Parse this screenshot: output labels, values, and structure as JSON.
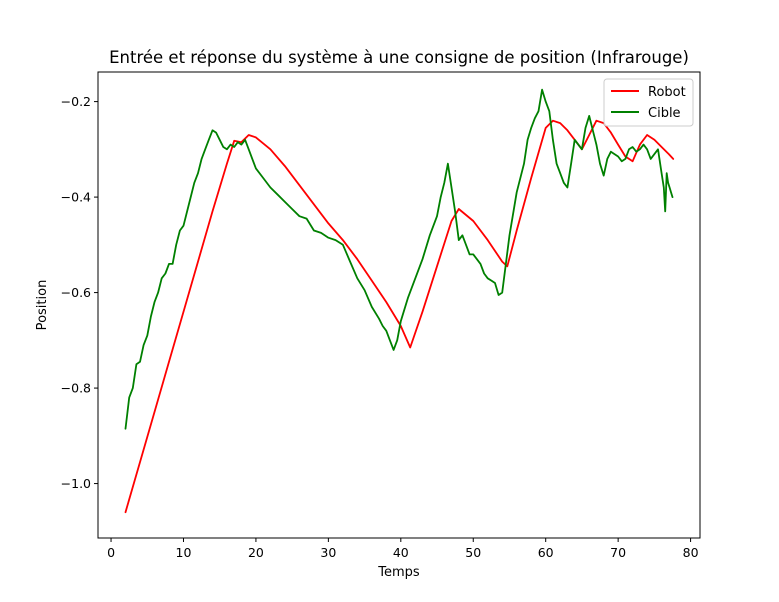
{
  "chart_data": {
    "type": "line",
    "title": "Entrée et réponse du système à une consigne de position (Infrarouge)",
    "xlabel": "Temps",
    "ylabel": "Position",
    "xlim": [
      -1.8,
      81.3
    ],
    "ylim": [
      -1.114,
      -0.138
    ],
    "xticks": [
      0,
      10,
      20,
      30,
      40,
      50,
      60,
      70,
      80
    ],
    "yticks": [
      -1.0,
      -0.8,
      -0.6,
      -0.4,
      -0.2
    ],
    "xtick_labels": [
      "0",
      "10",
      "20",
      "30",
      "40",
      "50",
      "60",
      "70",
      "80"
    ],
    "ytick_labels": [
      "−1.0",
      "−0.8",
      "−0.6",
      "−0.4",
      "−0.2"
    ],
    "grid": false,
    "legend_position": "top-right",
    "series": [
      {
        "name": "Robot",
        "color": "#ff0000",
        "x": [
          2.0,
          4.0,
          6.0,
          8.0,
          10.0,
          12.0,
          14.0,
          16.0,
          17.0,
          18.0,
          19.0,
          20.0,
          22.0,
          24.0,
          26.0,
          28.0,
          30.0,
          32.0,
          34.0,
          36.0,
          38.0,
          40.0,
          41.3,
          43.0,
          45.0,
          47.0,
          48.0,
          50.0,
          52.0,
          54.0,
          54.7,
          56.0,
          58.0,
          60.0,
          61.0,
          62.0,
          63.0,
          64.0,
          65.0,
          66.0,
          67.0,
          68.0,
          69.0,
          70.0,
          71.0,
          72.0,
          73.0,
          74.0,
          75.0,
          76.0,
          77.0,
          77.6
        ],
        "y": [
          -1.06,
          -0.955,
          -0.85,
          -0.745,
          -0.64,
          -0.535,
          -0.43,
          -0.33,
          -0.282,
          -0.285,
          -0.27,
          -0.275,
          -0.3,
          -0.335,
          -0.375,
          -0.415,
          -0.455,
          -0.49,
          -0.53,
          -0.575,
          -0.62,
          -0.67,
          -0.715,
          -0.64,
          -0.545,
          -0.45,
          -0.425,
          -0.45,
          -0.49,
          -0.535,
          -0.545,
          -0.47,
          -0.36,
          -0.255,
          -0.24,
          -0.245,
          -0.26,
          -0.28,
          -0.3,
          -0.27,
          -0.24,
          -0.245,
          -0.265,
          -0.29,
          -0.315,
          -0.325,
          -0.29,
          -0.27,
          -0.28,
          -0.295,
          -0.31,
          -0.32
        ]
      },
      {
        "name": "Cible",
        "color": "#008000",
        "x": [
          2.0,
          2.5,
          3.0,
          3.5,
          4.0,
          4.5,
          5.0,
          5.5,
          6.0,
          6.5,
          7.0,
          7.5,
          8.0,
          8.5,
          9.0,
          9.5,
          10.0,
          10.5,
          11.0,
          11.5,
          12.0,
          12.5,
          13.0,
          13.5,
          14.0,
          14.5,
          15.0,
          15.5,
          16.0,
          16.5,
          17.0,
          17.5,
          18.0,
          18.5,
          19.0,
          19.5,
          20.0,
          21.0,
          22.0,
          23.0,
          24.0,
          25.0,
          26.0,
          27.0,
          28.0,
          29.0,
          30.0,
          31.0,
          32.0,
          33.0,
          34.0,
          35.0,
          36.0,
          37.0,
          37.5,
          38.0,
          38.5,
          39.0,
          39.5,
          40.0,
          41.0,
          42.0,
          43.0,
          44.0,
          45.0,
          45.5,
          46.0,
          46.5,
          47.0,
          47.5,
          48.0,
          48.5,
          49.0,
          49.5,
          50.0,
          51.0,
          51.5,
          52.0,
          52.5,
          53.0,
          53.5,
          54.0,
          55.0,
          56.0,
          57.0,
          57.5,
          58.0,
          58.5,
          59.0,
          59.5,
          60.0,
          60.5,
          61.0,
          61.5,
          62.0,
          62.5,
          63.0,
          63.5,
          64.0,
          64.5,
          65.0,
          65.5,
          66.0,
          66.5,
          67.0,
          67.5,
          68.0,
          68.5,
          69.0,
          69.5,
          70.0,
          70.5,
          71.0,
          71.5,
          72.0,
          72.5,
          73.0,
          73.5,
          74.0,
          74.5,
          75.0,
          75.5,
          76.0,
          76.3,
          76.5,
          76.7,
          76.9,
          77.1,
          77.3,
          77.5
        ],
        "y": [
          -0.885,
          -0.82,
          -0.8,
          -0.75,
          -0.745,
          -0.71,
          -0.69,
          -0.65,
          -0.62,
          -0.6,
          -0.57,
          -0.56,
          -0.54,
          -0.54,
          -0.5,
          -0.47,
          -0.46,
          -0.43,
          -0.4,
          -0.37,
          -0.35,
          -0.32,
          -0.3,
          -0.28,
          -0.26,
          -0.265,
          -0.28,
          -0.295,
          -0.3,
          -0.29,
          -0.295,
          -0.285,
          -0.29,
          -0.28,
          -0.3,
          -0.32,
          -0.34,
          -0.36,
          -0.38,
          -0.395,
          -0.41,
          -0.425,
          -0.44,
          -0.445,
          -0.47,
          -0.475,
          -0.485,
          -0.49,
          -0.5,
          -0.535,
          -0.57,
          -0.595,
          -0.63,
          -0.655,
          -0.67,
          -0.68,
          -0.7,
          -0.72,
          -0.7,
          -0.66,
          -0.61,
          -0.57,
          -0.53,
          -0.48,
          -0.44,
          -0.4,
          -0.37,
          -0.33,
          -0.38,
          -0.43,
          -0.49,
          -0.48,
          -0.5,
          -0.52,
          -0.52,
          -0.54,
          -0.56,
          -0.57,
          -0.575,
          -0.58,
          -0.605,
          -0.6,
          -0.48,
          -0.39,
          -0.33,
          -0.28,
          -0.255,
          -0.235,
          -0.22,
          -0.175,
          -0.2,
          -0.22,
          -0.28,
          -0.33,
          -0.35,
          -0.37,
          -0.38,
          -0.33,
          -0.28,
          -0.29,
          -0.3,
          -0.255,
          -0.23,
          -0.26,
          -0.29,
          -0.33,
          -0.355,
          -0.32,
          -0.305,
          -0.31,
          -0.315,
          -0.325,
          -0.32,
          -0.3,
          -0.295,
          -0.305,
          -0.3,
          -0.29,
          -0.3,
          -0.32,
          -0.31,
          -0.3,
          -0.35,
          -0.38,
          -0.43,
          -0.35,
          -0.37,
          -0.38,
          -0.39,
          -0.4
        ]
      }
    ]
  }
}
